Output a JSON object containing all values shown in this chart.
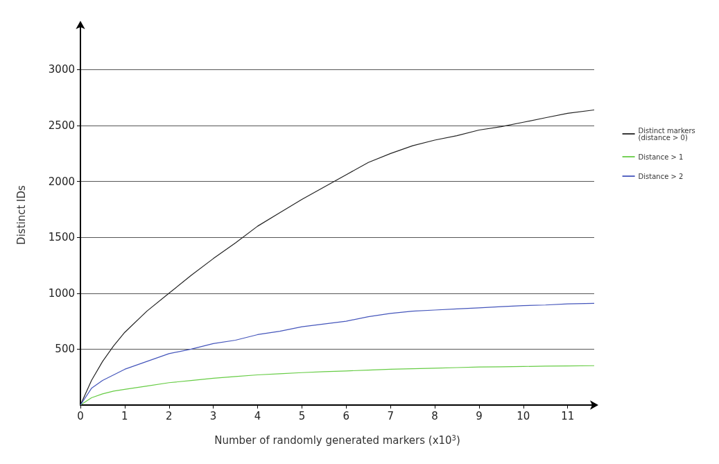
{
  "chart_data": {
    "type": "line",
    "xlabel": "Number of randomly generated markers (x10$^{3}$)",
    "ylabel": "Distinct IDs",
    "xlim": [
      0,
      11.6
    ],
    "ylim": [
      0,
      3400
    ],
    "xticks": [
      0,
      1,
      2,
      3,
      4,
      5,
      6,
      7,
      8,
      9,
      10,
      11
    ],
    "yticks": [
      500,
      1000,
      1500,
      2000,
      2500,
      3000
    ],
    "grid": "y",
    "legend": "right",
    "marker": "none",
    "line_style": "solid",
    "series": [
      {
        "name": "Distinct markers (distance > 0)",
        "color": "#222222",
        "x": [
          0,
          0.25,
          0.5,
          0.75,
          1,
          1.5,
          2,
          2.5,
          3,
          3.5,
          4,
          4.5,
          5,
          5.5,
          6,
          6.5,
          7,
          7.5,
          8,
          8.5,
          9,
          9.5,
          10,
          10.5,
          11,
          11.6
        ],
        "values": [
          0,
          220,
          390,
          530,
          650,
          840,
          1000,
          1160,
          1310,
          1450,
          1600,
          1720,
          1840,
          1950,
          2060,
          2170,
          2250,
          2320,
          2370,
          2410,
          2460,
          2490,
          2530,
          2570,
          2610,
          2640
        ]
      },
      {
        "name": "Distance > 1",
        "color": "#66cc44",
        "x": [
          0,
          0.25,
          0.5,
          0.75,
          1,
          1.5,
          2,
          2.5,
          3,
          3.5,
          4,
          4.5,
          5,
          5.5,
          6,
          6.5,
          7,
          7.5,
          8,
          8.5,
          9,
          9.5,
          10,
          10.5,
          11,
          11.6
        ],
        "values": [
          0,
          65,
          100,
          125,
          140,
          170,
          200,
          220,
          240,
          255,
          270,
          280,
          290,
          298,
          305,
          313,
          320,
          325,
          330,
          335,
          340,
          342,
          345,
          348,
          350,
          352
        ]
      },
      {
        "name": "Distance > 2",
        "color": "#4455bb",
        "x": [
          0,
          0.25,
          0.5,
          0.75,
          1,
          1.5,
          2,
          2.5,
          3,
          3.5,
          4,
          4.5,
          5,
          5.5,
          6,
          6.5,
          7,
          7.5,
          8,
          8.5,
          9,
          9.5,
          10,
          10.5,
          11,
          11.6
        ],
        "values": [
          0,
          150,
          220,
          270,
          320,
          390,
          460,
          500,
          550,
          580,
          630,
          660,
          700,
          725,
          750,
          790,
          820,
          840,
          850,
          860,
          870,
          880,
          890,
          895,
          905,
          910
        ]
      }
    ]
  }
}
